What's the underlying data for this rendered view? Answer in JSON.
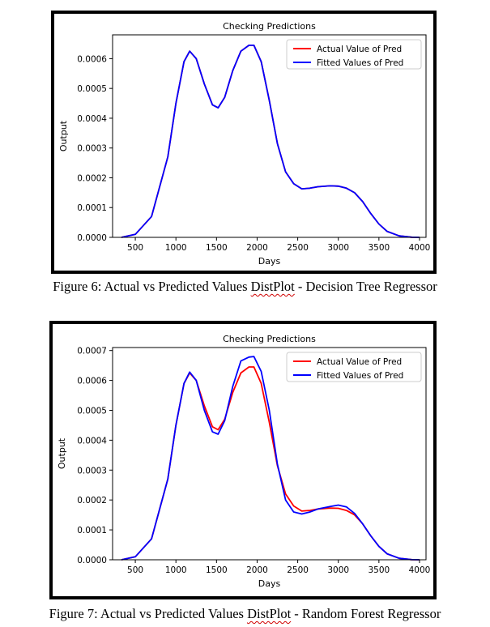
{
  "figures": [
    {
      "caption_prefix": "Figure 6: Actual vs Predicted Values ",
      "caption_mark": "DistPlot",
      "caption_suffix": " - Decision Tree Regressor"
    },
    {
      "caption_prefix": "Figure 7: Actual vs Predicted Values ",
      "caption_mark": "DistPlot",
      "caption_suffix": " - Random Forest Regressor"
    }
  ],
  "chart_data": [
    {
      "type": "line",
      "title": "Checking Predictions",
      "xlabel": "Days",
      "ylabel": "Output",
      "xlim": [
        220,
        4080
      ],
      "ylim": [
        0,
        0.00068
      ],
      "xticks": [
        500,
        1000,
        1500,
        2000,
        2500,
        3000,
        3500,
        4000
      ],
      "yticks": [
        0,
        0.0001,
        0.0002,
        0.0003,
        0.0004,
        0.0005,
        0.0006
      ],
      "ytick_labels": [
        "0.0000",
        "0.0001",
        "0.0002",
        "0.0003",
        "0.0004",
        "0.0005",
        "0.0006"
      ],
      "legend_position": "top-right",
      "grid": false,
      "series": [
        {
          "name": "Actual Value of Pred",
          "color": "#ff0000",
          "x": [
            330,
            500,
            700,
            900,
            1000,
            1100,
            1170,
            1250,
            1350,
            1450,
            1520,
            1600,
            1700,
            1800,
            1900,
            1960,
            2050,
            2150,
            2250,
            2350,
            2450,
            2550,
            2650,
            2750,
            2900,
            3000,
            3100,
            3200,
            3300,
            3400,
            3500,
            3600,
            3750,
            3900,
            4000
          ],
          "y": [
            0.0,
            1e-05,
            7e-05,
            0.00027,
            0.00045,
            0.00059,
            0.000625,
            0.0006,
            0.000515,
            0.000445,
            0.000435,
            0.00047,
            0.00056,
            0.000625,
            0.000645,
            0.000645,
            0.00059,
            0.00046,
            0.000315,
            0.00022,
            0.00018,
            0.000163,
            0.000165,
            0.00017,
            0.000173,
            0.000172,
            0.000165,
            0.00015,
            0.00012,
            8e-05,
            4.5e-05,
            2e-05,
            5e-06,
            5e-07,
            0.0
          ]
        },
        {
          "name": "Fitted Values of Pred",
          "color": "#0000ff",
          "x": [
            330,
            500,
            700,
            900,
            1000,
            1100,
            1170,
            1250,
            1350,
            1450,
            1520,
            1600,
            1700,
            1800,
            1900,
            1960,
            2050,
            2150,
            2250,
            2350,
            2450,
            2550,
            2650,
            2750,
            2900,
            3000,
            3100,
            3200,
            3300,
            3400,
            3500,
            3600,
            3750,
            3900,
            4000
          ],
          "y": [
            0.0,
            1e-05,
            7e-05,
            0.00027,
            0.00045,
            0.00059,
            0.000625,
            0.0006,
            0.000515,
            0.000445,
            0.000435,
            0.00047,
            0.00056,
            0.000625,
            0.000645,
            0.000645,
            0.00059,
            0.00046,
            0.000315,
            0.00022,
            0.00018,
            0.000163,
            0.000165,
            0.00017,
            0.000173,
            0.000172,
            0.000165,
            0.00015,
            0.00012,
            8e-05,
            4.5e-05,
            2e-05,
            5e-06,
            5e-07,
            0.0
          ]
        }
      ]
    },
    {
      "type": "line",
      "title": "Checking Predictions",
      "xlabel": "Days",
      "ylabel": "Output",
      "xlim": [
        220,
        4080
      ],
      "ylim": [
        0,
        0.00071
      ],
      "xticks": [
        500,
        1000,
        1500,
        2000,
        2500,
        3000,
        3500,
        4000
      ],
      "yticks": [
        0,
        0.0001,
        0.0002,
        0.0003,
        0.0004,
        0.0005,
        0.0006,
        0.0007
      ],
      "ytick_labels": [
        "0.0000",
        "0.0001",
        "0.0002",
        "0.0003",
        "0.0004",
        "0.0005",
        "0.0006",
        "0.0007"
      ],
      "legend_position": "top-right",
      "grid": false,
      "series": [
        {
          "name": "Actual Value of Pred",
          "color": "#ff0000",
          "x": [
            330,
            500,
            700,
            900,
            1000,
            1100,
            1170,
            1250,
            1350,
            1450,
            1520,
            1600,
            1700,
            1800,
            1900,
            1960,
            2050,
            2150,
            2250,
            2350,
            2450,
            2550,
            2650,
            2750,
            2900,
            3000,
            3100,
            3200,
            3300,
            3400,
            3500,
            3600,
            3750,
            3900,
            4000
          ],
          "y": [
            0.0,
            1e-05,
            7e-05,
            0.00027,
            0.00045,
            0.00059,
            0.000625,
            0.0006,
            0.000515,
            0.000445,
            0.000435,
            0.00047,
            0.00056,
            0.000625,
            0.000645,
            0.000645,
            0.00059,
            0.00046,
            0.000315,
            0.00022,
            0.00018,
            0.000163,
            0.000165,
            0.00017,
            0.000173,
            0.000172,
            0.000165,
            0.00015,
            0.00012,
            8e-05,
            4.5e-05,
            2e-05,
            5e-06,
            5e-07,
            0.0
          ]
        },
        {
          "name": "Fitted Values of Pred",
          "color": "#0000ff",
          "x": [
            330,
            500,
            700,
            900,
            1000,
            1100,
            1170,
            1250,
            1350,
            1450,
            1520,
            1600,
            1700,
            1800,
            1900,
            1960,
            2050,
            2150,
            2250,
            2350,
            2450,
            2550,
            2650,
            2750,
            2900,
            3000,
            3100,
            3200,
            3300,
            3400,
            3500,
            3600,
            3750,
            3900,
            4000
          ],
          "y": [
            0.0,
            1e-05,
            7e-05,
            0.00027,
            0.00045,
            0.00059,
            0.000628,
            0.0006,
            0.0005,
            0.000428,
            0.00042,
            0.000465,
            0.00058,
            0.000665,
            0.000678,
            0.00068,
            0.00063,
            0.0005,
            0.00032,
            0.0002,
            0.00016,
            0.000153,
            0.00016,
            0.00017,
            0.000178,
            0.000183,
            0.000177,
            0.000155,
            0.00012,
            8e-05,
            4.5e-05,
            2e-05,
            5e-06,
            5e-07,
            0.0
          ]
        }
      ]
    }
  ]
}
